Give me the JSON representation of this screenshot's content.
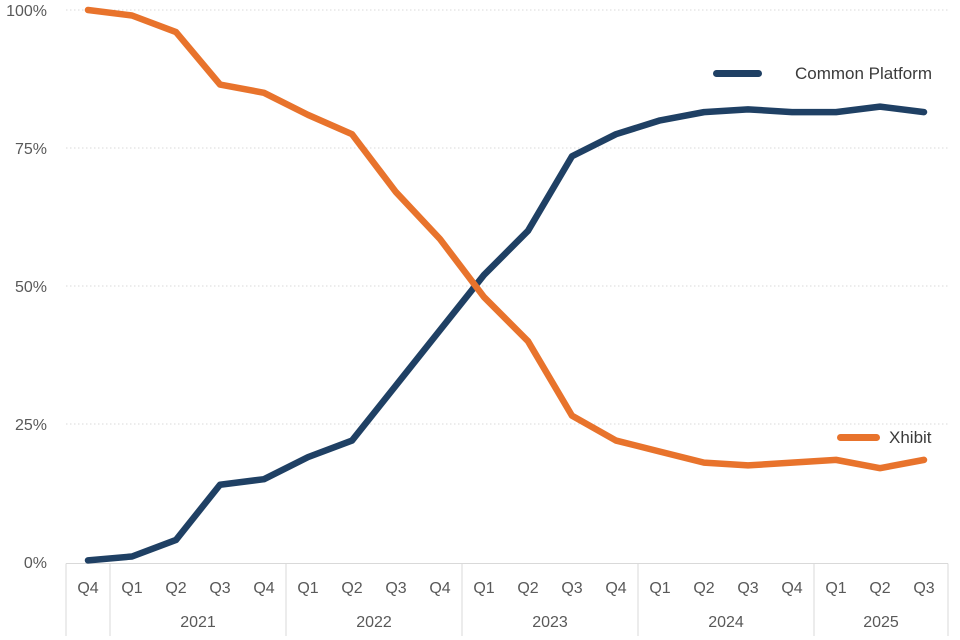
{
  "chart_data": {
    "type": "line",
    "title": "",
    "x": {
      "quarter_labels": [
        "Q4",
        "Q1",
        "Q2",
        "Q3",
        "Q4",
        "Q1",
        "Q2",
        "Q3",
        "Q4",
        "Q1",
        "Q2",
        "Q3",
        "Q4",
        "Q1",
        "Q2",
        "Q3",
        "Q4",
        "Q1",
        "Q2",
        "Q3"
      ],
      "year_groups": [
        {
          "label": "",
          "count": 1
        },
        {
          "label": "2021",
          "count": 4
        },
        {
          "label": "2022",
          "count": 4
        },
        {
          "label": "2023",
          "count": 4
        },
        {
          "label": "2024",
          "count": 4
        },
        {
          "label": "2025",
          "count": 3
        }
      ]
    },
    "y_axis": {
      "tick_labels": [
        "0%",
        "25%",
        "50%",
        "75%",
        "100%"
      ],
      "tick_values": [
        0,
        25,
        50,
        75,
        100
      ],
      "min": 0,
      "max": 100,
      "grid": "dotted horizontal gridlines, solid baseline"
    },
    "series": [
      {
        "name": "Common Platform",
        "color": "#1F4064",
        "values": [
          0.3,
          1,
          4,
          14,
          15,
          19,
          22,
          32,
          42,
          52,
          60,
          73.5,
          77.5,
          80,
          81.5,
          82,
          81.5,
          81.5,
          82.5,
          81.5
        ]
      },
      {
        "name": "Xhibit",
        "color": "#E8732C",
        "values": [
          100,
          99,
          96,
          86.5,
          85,
          81,
          77.5,
          67,
          58.5,
          48,
          40,
          26.5,
          22,
          20,
          18,
          17.5,
          18,
          18.5,
          17,
          18.5
        ]
      }
    ],
    "legend_position": "floating; Common Platform at top-right, Xhibit at right near orange line"
  },
  "colors": {
    "navy": "#1F4064",
    "orange": "#E8732C",
    "gridline": "#D9D9D9",
    "axis_text": "#595959",
    "legend_text": "#3B3B3B",
    "background": "#FFFFFF"
  }
}
